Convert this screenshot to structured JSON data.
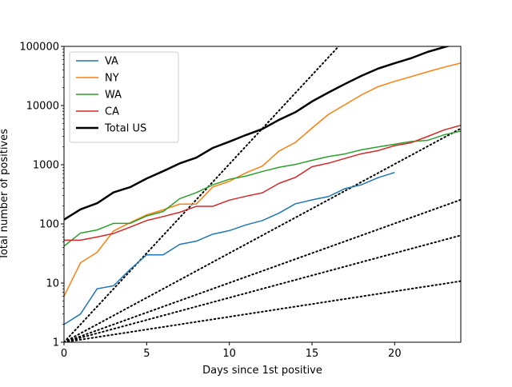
{
  "chart_data": {
    "type": "line",
    "title": "",
    "xlabel": "Days since 1st positive",
    "ylabel": "Total number of positives",
    "xlim": [
      0,
      24
    ],
    "ylim": [
      1,
      100000
    ],
    "yscale": "log",
    "grid": false,
    "legend_position": "top-left",
    "x_ticks": [
      0,
      5,
      10,
      15,
      20
    ],
    "x_tick_labels": [
      "0",
      "5",
      "10",
      "15",
      "20"
    ],
    "y_ticks": [
      1,
      10,
      100,
      1000,
      10000,
      100000
    ],
    "y_tick_labels": [
      "1",
      "10",
      "100",
      "1000",
      "10000",
      "100000"
    ],
    "series": [
      {
        "name": "VA",
        "color": "#1f77b4",
        "x": [
          0,
          1,
          2,
          3,
          4,
          5,
          6,
          7,
          8,
          9,
          10,
          11,
          12,
          13,
          14,
          15,
          16,
          17,
          18,
          19,
          20
        ],
        "values": [
          2,
          3,
          8,
          9,
          17,
          30,
          30,
          45,
          51,
          67,
          77,
          96,
          114,
          152,
          219,
          254,
          290,
          395,
          460,
          604,
          739
        ]
      },
      {
        "name": "NY",
        "color": "#ff7f0e",
        "x": [
          0,
          1,
          2,
          3,
          4,
          5,
          6,
          7,
          8,
          9,
          10,
          11,
          12,
          13,
          14,
          15,
          16,
          17,
          18,
          19,
          20,
          21,
          22,
          23,
          24
        ],
        "values": [
          6,
          22,
          33,
          76,
          105,
          142,
          173,
          216,
          216,
          421,
          524,
          729,
          950,
          1700,
          2382,
          4152,
          7102,
          10356,
          15168,
          20875,
          25665,
          30811,
          37258,
          44635,
          52318
        ]
      },
      {
        "name": "WA",
        "color": "#2ca02c",
        "x": [
          0,
          1,
          2,
          3,
          4,
          5,
          6,
          7,
          8,
          9,
          10,
          11,
          12,
          13,
          14,
          15,
          16,
          17,
          18,
          19,
          20,
          21,
          22,
          23,
          24
        ],
        "values": [
          42,
          70,
          79,
          102,
          102,
          136,
          162,
          267,
          337,
          457,
          568,
          642,
          769,
          904,
          1012,
          1187,
          1376,
          1524,
          1793,
          1996,
          2221,
          2469,
          2580,
          3207,
          3700
        ]
      },
      {
        "name": "CA",
        "color": "#d62728",
        "x": [
          0,
          1,
          2,
          3,
          4,
          5,
          6,
          7,
          8,
          9,
          10,
          11,
          12,
          13,
          14,
          15,
          16,
          17,
          18,
          19,
          20,
          21,
          22,
          23,
          24
        ],
        "values": [
          53,
          53,
          60,
          69,
          88,
          114,
          133,
          157,
          198,
          198,
          252,
          293,
          335,
          483,
          611,
          924,
          1063,
          1279,
          1536,
          1733,
          2102,
          2355,
          3006,
          3879,
          4643
        ]
      },
      {
        "name": "Total US",
        "color": "#000000",
        "x": [
          0,
          1,
          2,
          3,
          4,
          5,
          6,
          7,
          8,
          9,
          10,
          11,
          12,
          13,
          14,
          15,
          16,
          17,
          18,
          19,
          20,
          21,
          22,
          23,
          24
        ],
        "values": [
          118,
          176,
          223,
          341,
          417,
          584,
          778,
          1053,
          1315,
          1922,
          2450,
          3173,
          4019,
          5722,
          7730,
          11719,
          16638,
          23203,
          31888,
          42164,
          51914,
          63197,
          80735,
          97226,
          116000
        ]
      }
    ],
    "reference_lines": [
      {
        "style": "dotted",
        "color": "#000000",
        "doubling_days": 1
      },
      {
        "style": "dotted",
        "color": "#000000",
        "doubling_days": 2
      },
      {
        "style": "dotted",
        "color": "#000000",
        "doubling_days": 3
      },
      {
        "style": "dotted",
        "color": "#000000",
        "doubling_days": 4
      },
      {
        "style": "dotted",
        "color": "#000000",
        "doubling_days": 7
      }
    ]
  }
}
